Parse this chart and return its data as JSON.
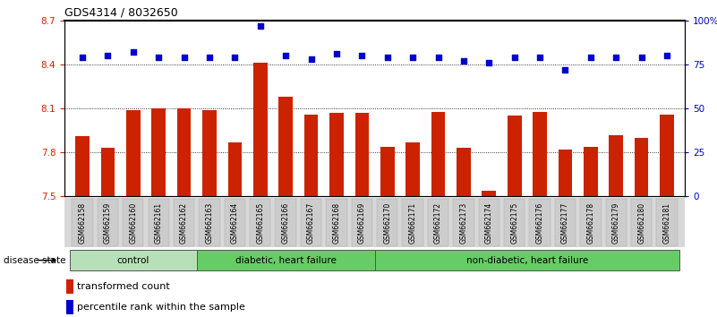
{
  "title": "GDS4314 / 8032650",
  "samples": [
    "GSM662158",
    "GSM662159",
    "GSM662160",
    "GSM662161",
    "GSM662162",
    "GSM662163",
    "GSM662164",
    "GSM662165",
    "GSM662166",
    "GSM662167",
    "GSM662168",
    "GSM662169",
    "GSM662170",
    "GSM662171",
    "GSM662172",
    "GSM662173",
    "GSM662174",
    "GSM662175",
    "GSM662176",
    "GSM662177",
    "GSM662178",
    "GSM662179",
    "GSM662180",
    "GSM662181"
  ],
  "bar_values": [
    7.91,
    7.83,
    8.09,
    8.1,
    8.1,
    8.09,
    7.87,
    8.41,
    8.18,
    8.06,
    8.07,
    8.07,
    7.84,
    7.87,
    8.08,
    7.83,
    7.54,
    8.05,
    8.08,
    7.82,
    7.84,
    7.92,
    7.9,
    8.06
  ],
  "percentile_values": [
    79,
    80,
    82,
    79,
    79,
    79,
    79,
    97,
    80,
    78,
    81,
    80,
    79,
    79,
    79,
    77,
    76,
    79,
    79,
    72,
    79,
    79,
    79,
    80
  ],
  "bar_color": "#cc2200",
  "dot_color": "#0000cc",
  "ylim_left": [
    7.5,
    8.7
  ],
  "ylim_right": [
    0,
    100
  ],
  "yticks_left": [
    7.5,
    7.8,
    8.1,
    8.4,
    8.7
  ],
  "yticks_right": [
    0,
    25,
    50,
    75,
    100
  ],
  "ytick_labels_right": [
    "0",
    "25",
    "50",
    "75",
    "100%"
  ],
  "grid_values": [
    7.8,
    8.1,
    8.4
  ],
  "groups": [
    {
      "label": "control",
      "start": 0,
      "end": 5,
      "color": "#b8e0b8"
    },
    {
      "label": "diabetic, heart failure",
      "start": 5,
      "end": 12,
      "color": "#66cc66"
    },
    {
      "label": "non-diabetic, heart failure",
      "start": 12,
      "end": 24,
      "color": "#66cc66"
    }
  ],
  "disease_state_label": "disease state",
  "legend_bar_label": "transformed count",
  "legend_dot_label": "percentile rank within the sample",
  "bg_color": "#ffffff",
  "tick_bg_color": "#d8d8d8"
}
